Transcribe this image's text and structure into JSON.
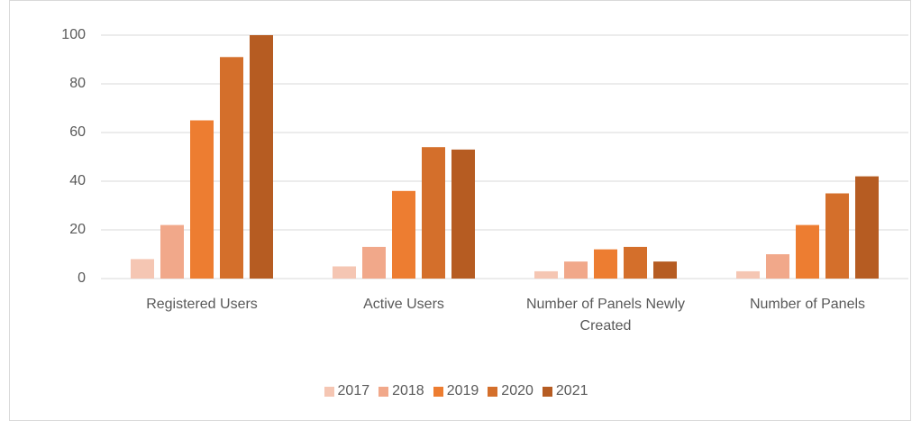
{
  "chart_data": {
    "type": "bar",
    "categories": [
      "Registered Users",
      "Active Users",
      "Number of Panels Newly Created",
      "Number of Panels"
    ],
    "series": [
      {
        "name": "2017",
        "color": "#f5c6b3",
        "values": [
          8,
          5,
          3,
          3
        ]
      },
      {
        "name": "2018",
        "color": "#f1a88a",
        "values": [
          22,
          13,
          7,
          10
        ]
      },
      {
        "name": "2019",
        "color": "#ed7d31",
        "values": [
          65,
          36,
          12,
          22
        ]
      },
      {
        "name": "2020",
        "color": "#d46f2b",
        "values": [
          91,
          54,
          13,
          35
        ]
      },
      {
        "name": "2021",
        "color": "#b65c22",
        "values": [
          100,
          53,
          7,
          42
        ]
      }
    ],
    "ylim": [
      0,
      100
    ],
    "yticks": [
      0,
      20,
      40,
      60,
      80,
      100
    ],
    "grid": true,
    "legend": "bottom"
  }
}
